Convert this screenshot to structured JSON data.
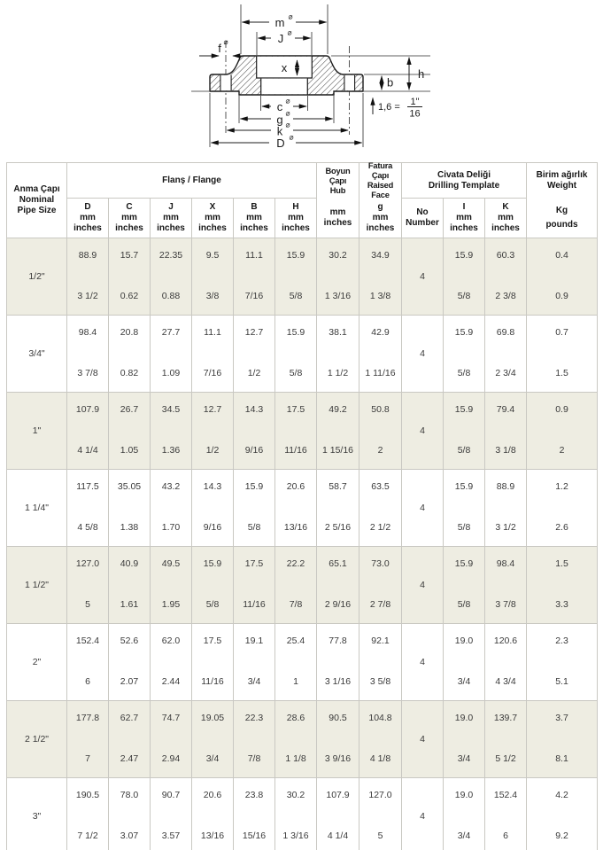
{
  "diagram": {
    "sym": "⌀",
    "labels": {
      "m": "m",
      "J": "J",
      "x": "x",
      "f": "f",
      "h": "h",
      "b": "b",
      "c": "c",
      "g": "g",
      "k": "k",
      "D": "D"
    },
    "note": {
      "prefix": "1,6 =",
      "numerator": "1\"",
      "denominator": "16"
    }
  },
  "table": {
    "headers": {
      "pipe_size": "Anma Çapı\nNominal\nPipe Size",
      "flange_group": "Flanş / Flange",
      "flange_cols": [
        "D\nmm\ninches",
        "C\nmm\ninches",
        "J\nmm\ninches",
        "X\nmm\ninches",
        "B\nmm\ninches",
        "H\nmm\ninches"
      ],
      "hub_title": "Boyun Çapı\nHub",
      "hub_units": "mm\ninches",
      "raised_title": "Fatura Çapı\nRaised\nFace",
      "raised_units": "g\nmm\ninches",
      "drilling_group": "Civata Deliği\nDrilling Template",
      "no_col": "No\nNumber",
      "i_col": "I\nmm\ninches",
      "k_col": "K\nmm\ninches",
      "weight_title": "Birim ağırlık\nWeight",
      "weight_units": "Kg\npounds"
    },
    "rows": [
      {
        "size": "1/2\"",
        "no": "4",
        "mm": [
          "88.9",
          "15.7",
          "22.35",
          "9.5",
          "11.1",
          "15.9",
          "30.2",
          "34.9",
          "15.9",
          "60.3",
          "0.4"
        ],
        "inches": [
          "3 1/2",
          "0.62",
          "0.88",
          "3/8",
          "7/16",
          "5/8",
          "1 3/16",
          "1 3/8",
          "5/8",
          "2 3/8",
          "0.9"
        ]
      },
      {
        "size": "3/4\"",
        "no": "4",
        "mm": [
          "98.4",
          "20.8",
          "27.7",
          "11.1",
          "12.7",
          "15.9",
          "38.1",
          "42.9",
          "15.9",
          "69.8",
          "0.7"
        ],
        "inches": [
          "3 7/8",
          "0.82",
          "1.09",
          "7/16",
          "1/2",
          "5/8",
          "1 1/2",
          "1 11/16",
          "5/8",
          "2 3/4",
          "1.5"
        ]
      },
      {
        "size": "1\"",
        "no": "4",
        "mm": [
          "107.9",
          "26.7",
          "34.5",
          "12.7",
          "14.3",
          "17.5",
          "49.2",
          "50.8",
          "15.9",
          "79.4",
          "0.9"
        ],
        "inches": [
          "4 1/4",
          "1.05",
          "1.36",
          "1/2",
          "9/16",
          "11/16",
          "1 15/16",
          "2",
          "5/8",
          "3 1/8",
          "2"
        ]
      },
      {
        "size": "1 1/4\"",
        "no": "4",
        "mm": [
          "117.5",
          "35.05",
          "43.2",
          "14.3",
          "15.9",
          "20.6",
          "58.7",
          "63.5",
          "15.9",
          "88.9",
          "1.2"
        ],
        "inches": [
          "4 5/8",
          "1.38",
          "1.70",
          "9/16",
          "5/8",
          "13/16",
          "2 5/16",
          "2 1/2",
          "5/8",
          "3 1/2",
          "2.6"
        ]
      },
      {
        "size": "1 1/2\"",
        "no": "4",
        "mm": [
          "127.0",
          "40.9",
          "49.5",
          "15.9",
          "17.5",
          "22.2",
          "65.1",
          "73.0",
          "15.9",
          "98.4",
          "1.5"
        ],
        "inches": [
          "5",
          "1.61",
          "1.95",
          "5/8",
          "11/16",
          "7/8",
          "2 9/16",
          "2 7/8",
          "5/8",
          "3 7/8",
          "3.3"
        ]
      },
      {
        "size": "2\"",
        "no": "4",
        "mm": [
          "152.4",
          "52.6",
          "62.0",
          "17.5",
          "19.1",
          "25.4",
          "77.8",
          "92.1",
          "19.0",
          "120.6",
          "2.3"
        ],
        "inches": [
          "6",
          "2.07",
          "2.44",
          "11/16",
          "3/4",
          "1",
          "3 1/16",
          "3 5/8",
          "3/4",
          "4 3/4",
          "5.1"
        ]
      },
      {
        "size": "2 1/2\"",
        "no": "4",
        "mm": [
          "177.8",
          "62.7",
          "74.7",
          "19.05",
          "22.3",
          "28.6",
          "90.5",
          "104.8",
          "19.0",
          "139.7",
          "3.7"
        ],
        "inches": [
          "7",
          "2.47",
          "2.94",
          "3/4",
          "7/8",
          "1 1/8",
          "3 9/16",
          "4 1/8",
          "3/4",
          "5 1/2",
          "8.1"
        ]
      },
      {
        "size": "3\"",
        "no": "4",
        "mm": [
          "190.5",
          "78.0",
          "90.7",
          "20.6",
          "23.8",
          "30.2",
          "107.9",
          "127.0",
          "19.0",
          "152.4",
          "4.2"
        ],
        "inches": [
          "7 1/2",
          "3.07",
          "3.57",
          "13/16",
          "15/16",
          "1 3/16",
          "4 1/4",
          "5",
          "3/4",
          "6",
          "9.2"
        ]
      }
    ]
  }
}
